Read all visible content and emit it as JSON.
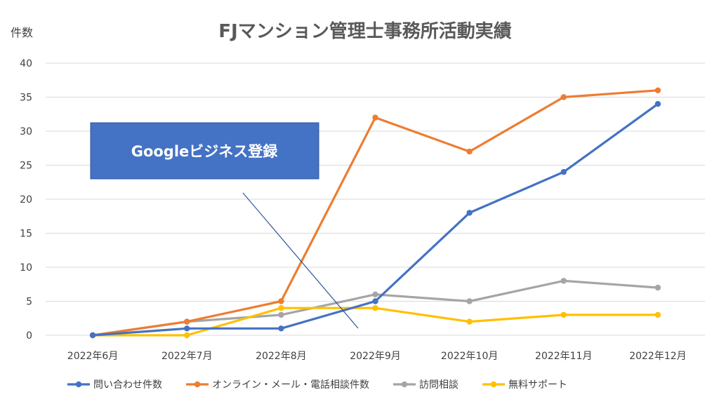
{
  "chart_data": {
    "type": "line",
    "title": "FJマンション管理士事務所活動実績",
    "ylabel": "件数",
    "xlabel": "",
    "ylim": [
      0,
      40
    ],
    "yticks": [
      0,
      5,
      10,
      15,
      20,
      25,
      30,
      35,
      40
    ],
    "grid": true,
    "legend_position": "bottom",
    "categories": [
      "2022年6月",
      "2022年7月",
      "2022年8月",
      "2022年9月",
      "2022年10月",
      "2022年11月",
      "2022年12月"
    ],
    "series": [
      {
        "name": "問い合わせ件数",
        "color": "#4472c4",
        "values": [
          0,
          1,
          1,
          5,
          18,
          24,
          34
        ]
      },
      {
        "name": "オンライン・メール・電話相談件数",
        "color": "#ed7d31",
        "values": [
          0,
          2,
          5,
          32,
          27,
          35,
          36
        ]
      },
      {
        "name": "訪問相談",
        "color": "#a5a5a5",
        "values": [
          0,
          2,
          3,
          6,
          5,
          8,
          7
        ]
      },
      {
        "name": "無料サポート",
        "color": "#ffc000",
        "values": [
          0,
          0,
          4,
          4,
          2,
          3,
          3
        ]
      }
    ],
    "annotations": [
      {
        "text": "Googleビジネス登録",
        "color": "#4472c4"
      }
    ]
  }
}
